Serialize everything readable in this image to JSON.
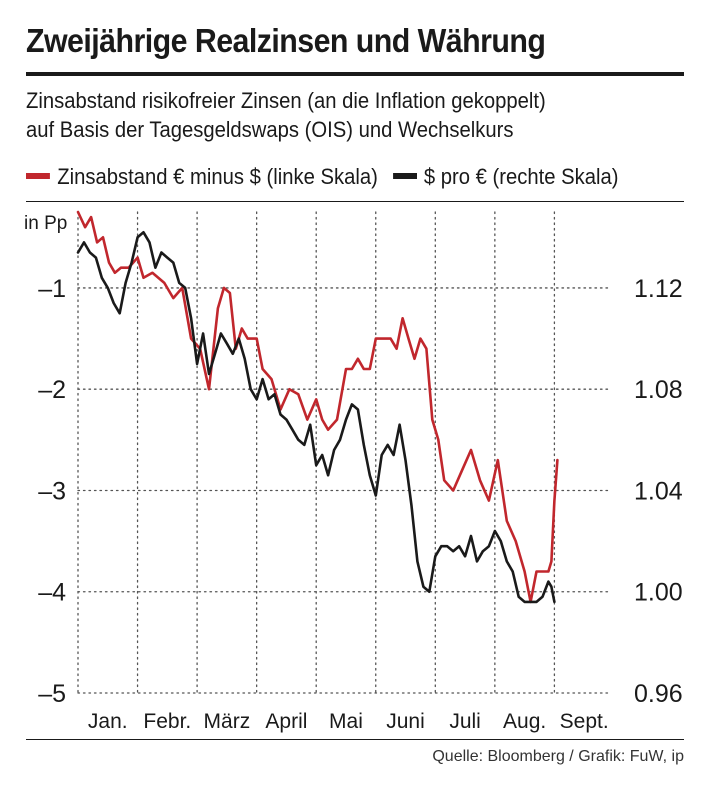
{
  "title": "Zweijährige Realzinsen und Währung",
  "subtitle_line1": "Zinsabstand risikofreier Zinsen (an die Inflation gekoppelt)",
  "subtitle_line2": "auf Basis der Tagesgeldswaps (OIS) und Wechselkurs",
  "source": "Quelle: Bloomberg / Grafik: FuW, ip",
  "colors": {
    "red": "#c1272d",
    "black": "#1a1a1a"
  },
  "chart_data": {
    "type": "line",
    "title": "Zweijährige Realzinsen und Währung",
    "left_axis": {
      "label": "in Pp",
      "range": [
        -5,
        -0.25
      ],
      "ticks": [
        -1,
        -2,
        -3,
        -4,
        -5
      ],
      "tick_labels": [
        "–1",
        "–2",
        "–3",
        "–4",
        "–5"
      ]
    },
    "right_axis": {
      "range": [
        0.96,
        1.15
      ],
      "ticks": [
        1.12,
        1.08,
        1.04,
        1.0,
        0.96
      ],
      "tick_labels": [
        "1.12",
        "1.08",
        "1.04",
        "1.00",
        "0.96"
      ]
    },
    "x_axis": {
      "range": [
        0,
        8.9
      ],
      "months": [
        "Jan.",
        "Febr.",
        "März",
        "April",
        "Mai",
        "Juni",
        "Juli",
        "Aug.",
        "Sept."
      ],
      "month_positions": [
        0.5,
        1.5,
        2.5,
        3.5,
        4.5,
        5.5,
        6.5,
        7.5,
        8.5
      ]
    },
    "grid": "dotted",
    "series": [
      {
        "name": "Zinsabstand € minus $ (linke Skala)",
        "axis": "left",
        "color": "#c1272d",
        "x": [
          0.0,
          0.12,
          0.22,
          0.32,
          0.42,
          0.52,
          0.62,
          0.72,
          0.85,
          1.0,
          1.1,
          1.25,
          1.45,
          1.6,
          1.75,
          1.9,
          2.05,
          2.2,
          2.35,
          2.45,
          2.55,
          2.65,
          2.75,
          2.85,
          3.0,
          3.1,
          3.25,
          3.4,
          3.55,
          3.7,
          3.85,
          4.0,
          4.1,
          4.2,
          4.35,
          4.5,
          4.6,
          4.7,
          4.8,
          4.9,
          5.0,
          5.1,
          5.15,
          5.25,
          5.35,
          5.45,
          5.55,
          5.65,
          5.75,
          5.85,
          5.95,
          6.05,
          6.15,
          6.3,
          6.45,
          6.6,
          6.75,
          6.9,
          7.05,
          7.2,
          7.35,
          7.5,
          7.6,
          7.7,
          7.8,
          7.9,
          7.95,
          8.0,
          8.05
        ],
        "values": [
          -0.25,
          -0.4,
          -0.3,
          -0.55,
          -0.5,
          -0.75,
          -0.85,
          -0.8,
          -0.8,
          -0.7,
          -0.9,
          -0.85,
          -0.95,
          -1.1,
          -1.0,
          -1.5,
          -1.6,
          -2.0,
          -1.2,
          -1.0,
          -1.05,
          -1.6,
          -1.4,
          -1.5,
          -1.5,
          -1.8,
          -1.9,
          -2.2,
          -2.0,
          -2.05,
          -2.3,
          -2.1,
          -2.3,
          -2.4,
          -2.3,
          -1.8,
          -1.8,
          -1.7,
          -1.8,
          -1.8,
          -1.5,
          -1.5,
          -1.5,
          -1.5,
          -1.6,
          -1.3,
          -1.5,
          -1.7,
          -1.5,
          -1.6,
          -2.3,
          -2.5,
          -2.9,
          -3.0,
          -2.8,
          -2.6,
          -2.9,
          -3.1,
          -2.7,
          -3.3,
          -3.5,
          -3.8,
          -4.1,
          -3.8,
          -3.8,
          -3.8,
          -3.7,
          -3.1,
          -2.7
        ],
        "y": [
          1.149,
          1.143,
          1.147,
          1.137,
          1.139,
          1.129,
          1.125,
          1.127,
          1.127,
          1.131,
          1.123,
          1.125,
          1.121,
          1.115,
          1.119,
          1.099,
          1.095,
          1.079,
          1.111,
          1.119,
          1.117,
          1.095,
          1.103,
          1.099,
          1.099,
          1.087,
          1.083,
          1.071,
          1.079,
          1.077,
          1.067,
          1.075,
          1.067,
          1.063,
          1.067,
          1.087,
          1.087,
          1.091,
          1.087,
          1.087,
          1.099,
          1.099,
          1.099,
          1.099,
          1.095,
          1.107,
          1.099,
          1.091,
          1.099,
          1.095,
          1.067,
          1.059,
          1.043,
          1.039,
          1.047,
          1.055,
          1.043,
          1.035,
          1.051,
          1.027,
          1.019,
          1.007,
          0.995,
          1.007,
          1.007,
          1.007,
          1.011,
          1.035,
          1.051
        ]
      },
      {
        "name": "$ pro € (rechte Skala)",
        "axis": "right",
        "color": "#1a1a1a",
        "x": [
          0.0,
          0.1,
          0.2,
          0.3,
          0.4,
          0.5,
          0.6,
          0.7,
          0.8,
          0.9,
          1.0,
          1.1,
          1.2,
          1.3,
          1.4,
          1.5,
          1.6,
          1.7,
          1.8,
          1.9,
          2.0,
          2.1,
          2.2,
          2.3,
          2.4,
          2.5,
          2.6,
          2.7,
          2.8,
          2.9,
          3.0,
          3.1,
          3.2,
          3.3,
          3.4,
          3.5,
          3.6,
          3.7,
          3.8,
          3.9,
          4.0,
          4.1,
          4.2,
          4.3,
          4.4,
          4.5,
          4.6,
          4.7,
          4.8,
          4.9,
          5.0,
          5.1,
          5.2,
          5.3,
          5.4,
          5.5,
          5.6,
          5.7,
          5.8,
          5.9,
          6.0,
          6.1,
          6.2,
          6.3,
          6.4,
          6.5,
          6.6,
          6.7,
          6.8,
          6.9,
          7.0,
          7.1,
          7.2,
          7.3,
          7.4,
          7.5,
          7.6,
          7.7,
          7.8,
          7.9,
          7.95,
          8.0
        ],
        "values": [
          1.134,
          1.138,
          1.134,
          1.132,
          1.124,
          1.12,
          1.114,
          1.11,
          1.122,
          1.13,
          1.14,
          1.142,
          1.138,
          1.128,
          1.134,
          1.132,
          1.13,
          1.122,
          1.12,
          1.108,
          1.09,
          1.102,
          1.086,
          1.094,
          1.102,
          1.098,
          1.094,
          1.1,
          1.092,
          1.08,
          1.076,
          1.084,
          1.076,
          1.078,
          1.07,
          1.068,
          1.064,
          1.06,
          1.058,
          1.066,
          1.05,
          1.054,
          1.046,
          1.056,
          1.06,
          1.068,
          1.074,
          1.072,
          1.058,
          1.046,
          1.038,
          1.054,
          1.058,
          1.054,
          1.066,
          1.052,
          1.034,
          1.012,
          1.002,
          1.0,
          1.014,
          1.018,
          1.018,
          1.016,
          1.018,
          1.014,
          1.022,
          1.012,
          1.016,
          1.018,
          1.024,
          1.02,
          1.012,
          1.008,
          0.998,
          0.996,
          0.996,
          0.996,
          0.998,
          1.004,
          1.002,
          0.996
        ]
      }
    ]
  },
  "legend": {
    "red_label": "Zinsabstand € minus $ (linke Skala)",
    "black_label": "$ pro € (rechte Skala)"
  }
}
